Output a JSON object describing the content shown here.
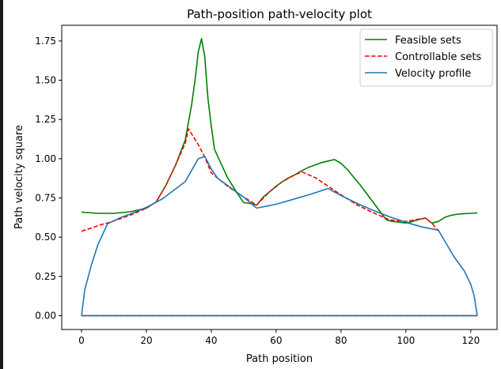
{
  "chart_data": {
    "type": "line",
    "title": "Path-position path-velocity plot",
    "xlabel": "Path position",
    "ylabel": "Path velocity square",
    "xlim": [
      -6.1,
      128.1
    ],
    "ylim": [
      -0.088,
      1.85
    ],
    "xticks": [
      0,
      20,
      40,
      60,
      80,
      100,
      120
    ],
    "yticks": [
      0.0,
      0.25,
      0.5,
      0.75,
      1.0,
      1.25,
      1.5,
      1.75
    ],
    "xtick_labels": [
      "0",
      "20",
      "40",
      "60",
      "80",
      "100",
      "120"
    ],
    "ytick_labels": [
      "0.00",
      "0.25",
      "0.50",
      "0.75",
      "1.00",
      "1.25",
      "1.50",
      "1.75"
    ],
    "legend_position": "top-right",
    "series": [
      {
        "name": "Feasible sets",
        "color": "#008000",
        "style": "solid",
        "x": [
          0,
          5,
          10,
          15,
          20,
          23,
          26,
          29,
          32,
          34,
          35,
          36,
          37,
          38,
          39,
          40,
          41,
          43,
          45,
          48,
          50,
          52,
          54,
          56,
          58,
          60,
          62,
          64,
          66,
          68,
          70,
          72,
          74,
          76,
          78,
          80,
          82,
          84,
          86,
          88,
          90,
          92,
          94,
          96,
          97,
          98,
          100,
          102,
          104,
          106,
          108,
          110,
          112,
          114,
          116,
          118,
          120,
          122
        ],
        "y": [
          0.66,
          0.652,
          0.652,
          0.662,
          0.685,
          0.725,
          0.83,
          0.96,
          1.12,
          1.35,
          1.5,
          1.68,
          1.765,
          1.65,
          1.38,
          1.21,
          1.06,
          0.97,
          0.88,
          0.78,
          0.72,
          0.715,
          0.705,
          0.755,
          0.79,
          0.825,
          0.855,
          0.88,
          0.9,
          0.925,
          0.945,
          0.96,
          0.975,
          0.985,
          0.995,
          0.97,
          0.93,
          0.88,
          0.83,
          0.775,
          0.72,
          0.665,
          0.61,
          0.6,
          0.598,
          0.595,
          0.59,
          0.6,
          0.612,
          0.622,
          0.59,
          0.6,
          0.627,
          0.64,
          0.647,
          0.65,
          0.652,
          0.655
        ]
      },
      {
        "name": "Controllable sets",
        "color": "#ff0000",
        "style": "dashed",
        "x": [
          0,
          3,
          6,
          8,
          12,
          16,
          20,
          23,
          26,
          29,
          32,
          33,
          36,
          38,
          40,
          45,
          50,
          54,
          58,
          62,
          66,
          68,
          72,
          76,
          80,
          85,
          90,
          95,
          100,
          104,
          106,
          108,
          110
        ],
        "y": [
          0.538,
          0.558,
          0.58,
          0.59,
          0.618,
          0.648,
          0.685,
          0.725,
          0.83,
          0.96,
          1.1,
          1.19,
          1.09,
          1.01,
          0.91,
          0.825,
          0.755,
          0.705,
          0.79,
          0.855,
          0.9,
          0.915,
          0.88,
          0.825,
          0.77,
          0.705,
          0.655,
          0.61,
          0.6,
          0.615,
          0.622,
          0.59,
          0.54
        ]
      },
      {
        "name": "Velocity profile",
        "color": "#1f77b4",
        "style": "solid",
        "x": [
          0,
          1,
          3,
          5,
          8,
          12,
          16,
          20,
          25,
          32,
          36,
          38,
          40,
          42,
          50,
          54,
          60,
          70,
          76,
          80,
          85,
          90,
          95,
          100,
          105,
          110,
          113,
          115,
          118,
          120,
          121,
          122,
          122
        ],
        "y": [
          0.0,
          0.165,
          0.32,
          0.45,
          0.585,
          0.625,
          0.655,
          0.69,
          0.745,
          0.855,
          1.0,
          1.015,
          0.935,
          0.875,
          0.755,
          0.685,
          0.71,
          0.77,
          0.81,
          0.765,
          0.715,
          0.67,
          0.63,
          0.595,
          0.565,
          0.545,
          0.44,
          0.37,
          0.285,
          0.2,
          0.13,
          0.0,
          0.0
        ]
      },
      {
        "name": "Feasible sets (lower)",
        "color": "#008000",
        "style": "solid",
        "legend": false,
        "x": [
          0,
          122
        ],
        "y": [
          0.0,
          0.0
        ]
      },
      {
        "name": "Controllable sets (lower)",
        "color": "#ff0000",
        "style": "dashed",
        "legend": false,
        "x": [
          0,
          122
        ],
        "y": [
          0.0,
          0.0
        ]
      },
      {
        "name": "Velocity profile (lower)",
        "color": "#1f77b4",
        "style": "solid",
        "legend": false,
        "x": [
          0,
          122
        ],
        "y": [
          0.0,
          0.0
        ]
      }
    ]
  }
}
